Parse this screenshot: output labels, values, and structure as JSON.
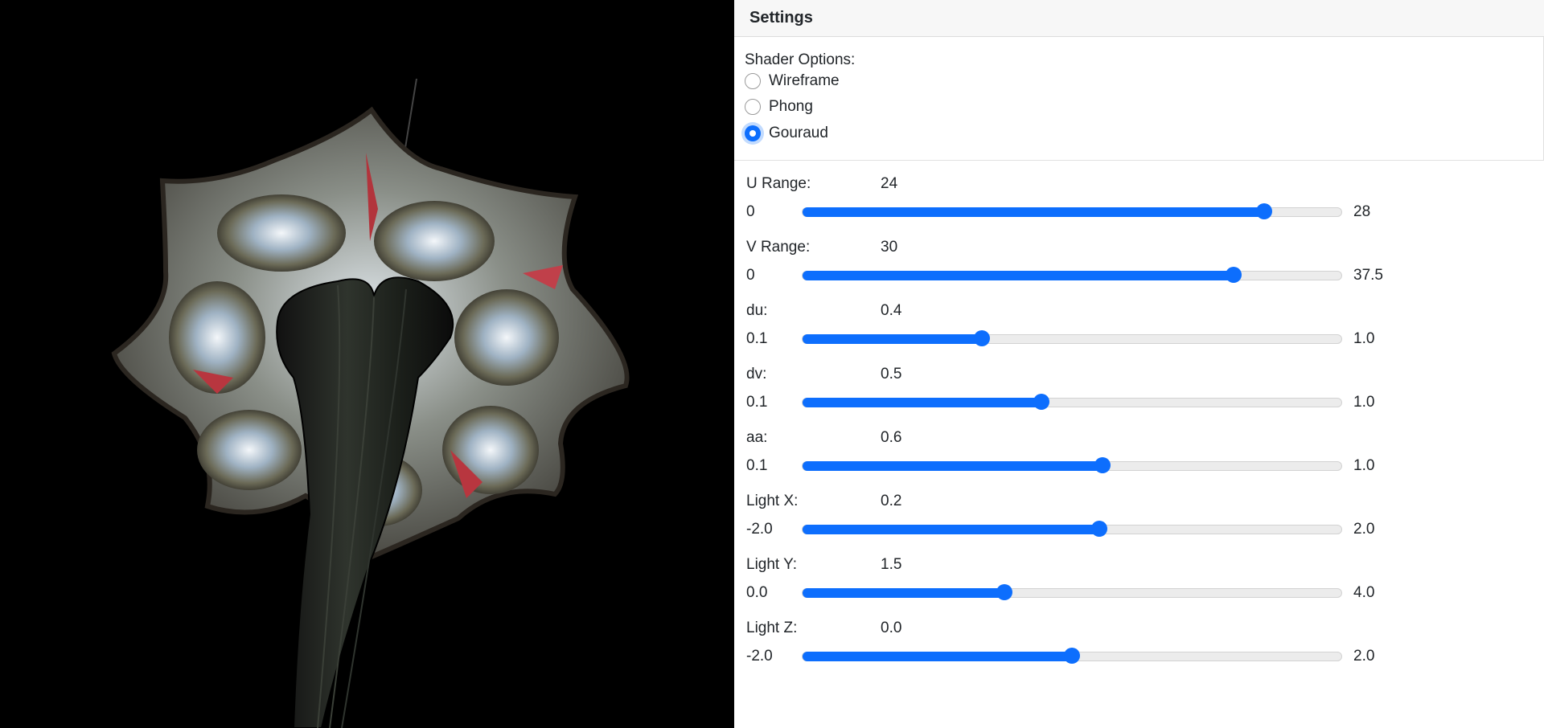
{
  "viewport": {
    "description_icon": "3d-surface-render-icon"
  },
  "settings": {
    "title": "Settings",
    "shader": {
      "label": "Shader Options:",
      "options": [
        {
          "label": "Wireframe",
          "checked": false
        },
        {
          "label": "Phong",
          "checked": false
        },
        {
          "label": "Gouraud",
          "checked": true
        }
      ]
    },
    "sliders": [
      {
        "name": "U Range:",
        "value": "24",
        "min": "0",
        "max": "28",
        "fraction": 0.857
      },
      {
        "name": "V Range:",
        "value": "30",
        "min": "0",
        "max": "37.5",
        "fraction": 0.8
      },
      {
        "name": "du:",
        "value": "0.4",
        "min": "0.1",
        "max": "1.0",
        "fraction": 0.333
      },
      {
        "name": "dv:",
        "value": "0.5",
        "min": "0.1",
        "max": "1.0",
        "fraction": 0.444
      },
      {
        "name": "aa:",
        "value": "0.6",
        "min": "0.1",
        "max": "1.0",
        "fraction": 0.556
      },
      {
        "name": "Light X:",
        "value": "0.2",
        "min": "-2.0",
        "max": "2.0",
        "fraction": 0.55
      },
      {
        "name": "Light Y:",
        "value": "1.5",
        "min": "0.0",
        "max": "4.0",
        "fraction": 0.375
      },
      {
        "name": "Light Z:",
        "value": "0.0",
        "min": "-2.0",
        "max": "2.0",
        "fraction": 0.5
      }
    ],
    "accent_color": "#0d6efd"
  }
}
